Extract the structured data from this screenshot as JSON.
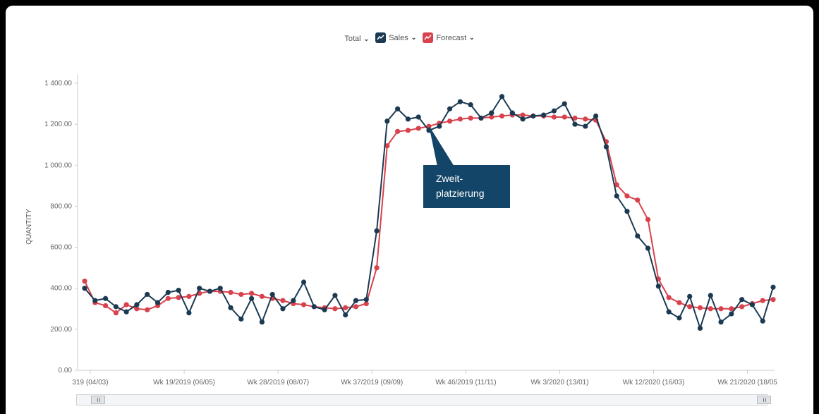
{
  "legend": {
    "total_label": "Total",
    "sales_label": "Sales",
    "forecast_label": "Forecast",
    "chevron": "❯"
  },
  "callout": {
    "line1": "Zweit-",
    "line2": "platzierung"
  },
  "chart_data": {
    "type": "line",
    "ylabel": "QUANTITY",
    "ylim": [
      0,
      1400
    ],
    "yticks": [
      "0.00",
      "200.00",
      "400.00",
      "600.00",
      "800.00",
      "1 000.00",
      "1 200.00",
      "1 400.00"
    ],
    "xtick_labels": [
      {
        "index": 0,
        "label": "319 (04/03)"
      },
      {
        "index": 9,
        "label": "Wk 19/2019 (06/05)"
      },
      {
        "index": 18,
        "label": "Wk 28/2019 (08/07)"
      },
      {
        "index": 27,
        "label": "Wk 37/2019 (09/09)"
      },
      {
        "index": 36,
        "label": "Wk 46/2019 (11/11)"
      },
      {
        "index": 45,
        "label": "Wk 3/2020 (13/01)"
      },
      {
        "index": 54,
        "label": "Wk 12/2020 (16/03)"
      },
      {
        "index": 63,
        "label": "Wk 21/2020 (18/05"
      }
    ],
    "grid": false,
    "legend_position": "top-center",
    "series": [
      {
        "name": "Sales",
        "color": "#1b3a52",
        "values": [
          400,
          340,
          350,
          310,
          285,
          320,
          370,
          330,
          380,
          390,
          280,
          400,
          385,
          400,
          305,
          250,
          350,
          235,
          370,
          300,
          340,
          430,
          310,
          295,
          365,
          270,
          340,
          345,
          680,
          1215,
          1275,
          1225,
          1235,
          1170,
          1190,
          1275,
          1310,
          1295,
          1230,
          1255,
          1335,
          1255,
          1225,
          1240,
          1245,
          1265,
          1300,
          1200,
          1190,
          1240,
          1090,
          850,
          775,
          655,
          595,
          410,
          285,
          255,
          360,
          205,
          365,
          235,
          275,
          345,
          320,
          240,
          405
        ]
      },
      {
        "name": "Forecast",
        "color": "#d7424c",
        "values": [
          435,
          330,
          315,
          280,
          320,
          300,
          295,
          315,
          350,
          355,
          360,
          375,
          385,
          385,
          380,
          370,
          375,
          360,
          350,
          340,
          325,
          320,
          310,
          305,
          300,
          305,
          310,
          325,
          500,
          1095,
          1165,
          1170,
          1180,
          1190,
          1205,
          1215,
          1225,
          1230,
          1230,
          1235,
          1240,
          1245,
          1245,
          1240,
          1240,
          1235,
          1235,
          1230,
          1225,
          1220,
          1115,
          905,
          850,
          830,
          735,
          445,
          355,
          330,
          310,
          305,
          300,
          300,
          300,
          310,
          325,
          340,
          345
        ]
      }
    ]
  }
}
